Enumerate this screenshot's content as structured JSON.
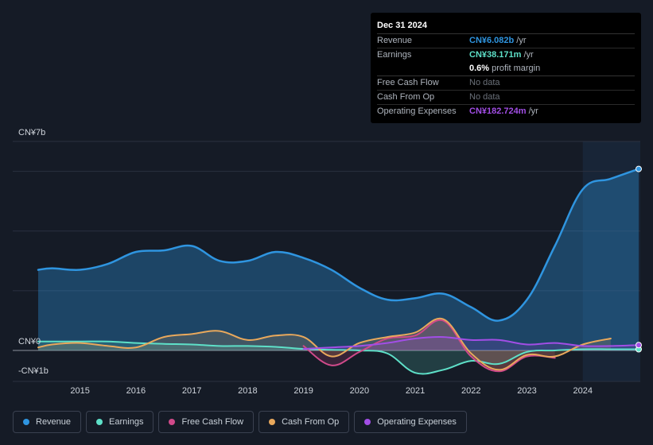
{
  "tooltip": {
    "date": "Dec 31 2024",
    "revenue_label": "Revenue",
    "revenue_value": "CN¥6.082b",
    "revenue_unit": "/yr",
    "earnings_label": "Earnings",
    "earnings_value": "CN¥38.171m",
    "earnings_unit": "/yr",
    "margin_value": "0.6%",
    "margin_text": "profit margin",
    "fcf_label": "Free Cash Flow",
    "fcf_value": "No data",
    "cfo_label": "Cash From Op",
    "cfo_value": "No data",
    "opex_label": "Operating Expenses",
    "opex_value": "CN¥182.724m",
    "opex_unit": "/yr"
  },
  "legend": [
    {
      "label": "Revenue",
      "color": "#2f95e0"
    },
    {
      "label": "Earnings",
      "color": "#5ee0c8"
    },
    {
      "label": "Free Cash Flow",
      "color": "#d04a8a"
    },
    {
      "label": "Cash From Op",
      "color": "#e8a85c"
    },
    {
      "label": "Operating Expenses",
      "color": "#a24ee6"
    }
  ],
  "chart_data": {
    "type": "area",
    "y_top_label": "CN¥7b",
    "y_zero_label": "CN¥0",
    "y_bottom_label": "-CN¥1b",
    "ylim": [
      -1,
      7
    ],
    "xlim": [
      2014.25,
      2025.0
    ],
    "x_ticks": [
      "2015",
      "2016",
      "2017",
      "2018",
      "2019",
      "2020",
      "2021",
      "2022",
      "2023",
      "2024"
    ],
    "highlight_start": 2024.0,
    "series": [
      {
        "name": "Revenue",
        "color": "#2f95e0",
        "x": [
          2014.25,
          2014.5,
          2015.0,
          2015.5,
          2016.0,
          2016.5,
          2017.0,
          2017.5,
          2018.0,
          2018.5,
          2019.0,
          2019.5,
          2020.0,
          2020.5,
          2021.0,
          2021.5,
          2022.0,
          2022.5,
          2023.0,
          2023.5,
          2024.0,
          2024.5,
          2025.0
        ],
        "values": [
          2.7,
          2.75,
          2.7,
          2.9,
          3.3,
          3.35,
          3.5,
          3.0,
          3.0,
          3.3,
          3.1,
          2.7,
          2.1,
          1.7,
          1.75,
          1.9,
          1.45,
          1.0,
          1.7,
          3.5,
          5.4,
          5.75,
          6.08
        ]
      },
      {
        "name": "Earnings",
        "color": "#5ee0c8",
        "x": [
          2014.25,
          2014.5,
          2015.0,
          2015.5,
          2016.0,
          2016.5,
          2017.0,
          2017.5,
          2018.0,
          2018.5,
          2019.0,
          2019.5,
          2020.0,
          2020.5,
          2021.0,
          2021.5,
          2022.0,
          2022.5,
          2023.0,
          2023.5,
          2024.0,
          2024.5,
          2025.0
        ],
        "values": [
          0.3,
          0.3,
          0.3,
          0.3,
          0.25,
          0.22,
          0.2,
          0.15,
          0.15,
          0.12,
          0.05,
          0.02,
          0.0,
          -0.1,
          -0.75,
          -0.65,
          -0.35,
          -0.45,
          -0.05,
          0.0,
          0.04,
          0.04,
          0.04
        ]
      },
      {
        "name": "Free Cash Flow",
        "color": "#d04a8a",
        "x": [
          2019.0,
          2019.5,
          2020.0,
          2020.5,
          2021.0,
          2021.5,
          2022.0,
          2022.5,
          2023.0,
          2023.5
        ],
        "values": [
          0.15,
          -0.5,
          -0.05,
          0.4,
          0.5,
          1.0,
          -0.2,
          -0.7,
          -0.2,
          -0.25
        ]
      },
      {
        "name": "Cash From Op",
        "color": "#e8a85c",
        "x": [
          2014.25,
          2014.5,
          2015.0,
          2015.5,
          2016.0,
          2016.5,
          2017.0,
          2017.5,
          2018.0,
          2018.5,
          2019.0,
          2019.5,
          2020.0,
          2020.5,
          2021.0,
          2021.5,
          2022.0,
          2022.5,
          2023.0,
          2023.5,
          2024.0,
          2024.5
        ],
        "values": [
          0.1,
          0.2,
          0.25,
          0.15,
          0.1,
          0.45,
          0.55,
          0.65,
          0.35,
          0.5,
          0.45,
          -0.2,
          0.25,
          0.45,
          0.6,
          1.05,
          -0.1,
          -0.65,
          -0.15,
          -0.2,
          0.2,
          0.4
        ]
      },
      {
        "name": "Operating Expenses",
        "color": "#a24ee6",
        "x": [
          2019.0,
          2019.5,
          2020.0,
          2020.5,
          2021.0,
          2021.5,
          2022.0,
          2022.5,
          2023.0,
          2023.5,
          2024.0,
          2024.5,
          2025.0
        ],
        "values": [
          0.05,
          0.1,
          0.15,
          0.25,
          0.4,
          0.45,
          0.35,
          0.35,
          0.2,
          0.25,
          0.15,
          0.15,
          0.18
        ]
      }
    ]
  }
}
